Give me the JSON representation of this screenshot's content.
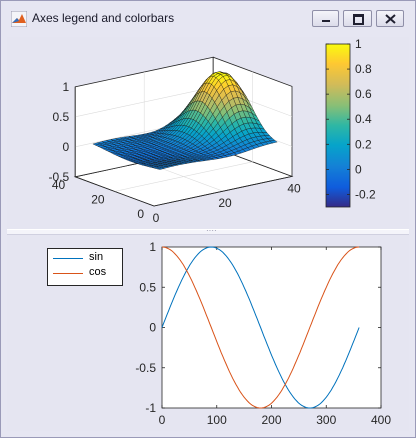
{
  "window": {
    "title": "Axes legend and colorbars",
    "icon": "matlab-icon",
    "controls": [
      "minimize-icon",
      "maximize-icon",
      "close-icon"
    ]
  },
  "top_panel": {
    "surface_plot": {
      "z_ticks": [
        "1",
        "0.5",
        "0",
        "-0.5"
      ],
      "y_ticks": [
        "40",
        "20",
        "0"
      ],
      "x_ticks": [
        "0",
        "20",
        "40"
      ]
    },
    "colorbar": {
      "ticks": [
        "1",
        "0.8",
        "0.6",
        "0.4",
        "0.2",
        "0",
        "-0.2"
      ]
    }
  },
  "bottom_panel": {
    "legend": {
      "entries": [
        "sin",
        "cos"
      ]
    }
  },
  "chart_data": [
    {
      "type": "surface",
      "colormap": "parula",
      "zlim": [
        -0.5,
        1
      ],
      "x_ticks": [
        0,
        20,
        40
      ],
      "y_ticks": [
        0,
        20,
        40
      ],
      "z_ticks": [
        -0.5,
        0,
        0.5,
        1
      ],
      "colorbar": {
        "range": [
          -0.3,
          1
        ],
        "ticks": [
          -0.2,
          0,
          0.2,
          0.4,
          0.6,
          0.8,
          1
        ]
      }
    },
    {
      "type": "line",
      "x_range": [
        0,
        360
      ],
      "xlim": [
        0,
        400
      ],
      "ylim": [
        -1,
        1
      ],
      "x_ticks": [
        0,
        100,
        200,
        300,
        400
      ],
      "y_ticks": [
        -1,
        -0.5,
        0,
        0.5,
        1
      ],
      "legend_position": "outside-top-left",
      "series": [
        {
          "name": "sin",
          "color": "#0072bd",
          "function": "sin(x degrees)"
        },
        {
          "name": "cos",
          "color": "#d95319",
          "function": "cos(x degrees)"
        }
      ]
    }
  ]
}
